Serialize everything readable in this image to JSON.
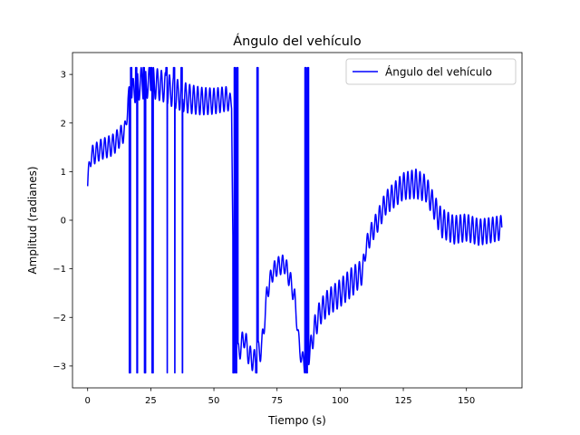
{
  "chart_data": {
    "type": "line",
    "title": "Ángulo del vehículo",
    "xlabel": "Tiempo (s)",
    "ylabel": "Amplitud (radianes)",
    "xlim": [
      -6,
      172
    ],
    "ylim": [
      -3.45,
      3.45
    ],
    "xticks": [
      0,
      25,
      50,
      75,
      100,
      125,
      150
    ],
    "yticks": [
      -3,
      -2,
      -1,
      0,
      1,
      2,
      3
    ],
    "grid": false,
    "legend": "upper-right",
    "colors": {
      "line": "#0000ff",
      "axes": "#000000",
      "background": "#ffffff"
    },
    "series": [
      {
        "name": "Ángulo del vehículo",
        "baseline": [
          [
            0,
            0.7
          ],
          [
            1,
            1.3
          ],
          [
            5,
            1.45
          ],
          [
            10,
            1.55
          ],
          [
            15,
            1.85
          ],
          [
            16,
            2.5
          ],
          [
            20,
            2.8
          ],
          [
            25,
            2.85
          ],
          [
            30,
            2.75
          ],
          [
            35,
            2.6
          ],
          [
            40,
            2.5
          ],
          [
            45,
            2.45
          ],
          [
            50,
            2.45
          ],
          [
            55,
            2.5
          ],
          [
            57,
            2.4
          ],
          [
            58,
            -2.9
          ],
          [
            60,
            -2.7
          ],
          [
            62,
            -2.4
          ],
          [
            64,
            -2.8
          ],
          [
            66,
            -2.9
          ],
          [
            69,
            -2.6
          ],
          [
            70,
            -2.1
          ],
          [
            71,
            -1.5
          ],
          [
            73,
            -1.1
          ],
          [
            75,
            -0.95
          ],
          [
            78,
            -0.9
          ],
          [
            80,
            -1.2
          ],
          [
            82,
            -1.6
          ],
          [
            84,
            -2.7
          ],
          [
            86,
            -3.0
          ],
          [
            88,
            -2.7
          ],
          [
            90,
            -2.2
          ],
          [
            92,
            -1.9
          ],
          [
            95,
            -1.7
          ],
          [
            100,
            -1.5
          ],
          [
            105,
            -1.25
          ],
          [
            109,
            -1.05
          ],
          [
            110,
            -0.6
          ],
          [
            112,
            -0.3
          ],
          [
            115,
            0.0
          ],
          [
            118,
            0.35
          ],
          [
            120,
            0.45
          ],
          [
            125,
            0.7
          ],
          [
            130,
            0.75
          ],
          [
            134,
            0.65
          ],
          [
            137,
            0.3
          ],
          [
            140,
            -0.05
          ],
          [
            145,
            -0.2
          ],
          [
            150,
            -0.15
          ],
          [
            155,
            -0.25
          ],
          [
            160,
            -0.2
          ],
          [
            164,
            -0.15
          ]
        ],
        "oscillation": [
          [
            0,
            0.2
          ],
          [
            10,
            0.22
          ],
          [
            16,
            0.2
          ],
          [
            20,
            0.33
          ],
          [
            40,
            0.3
          ],
          [
            55,
            0.25
          ],
          [
            57,
            0.15
          ],
          [
            58,
            0.2
          ],
          [
            69,
            0.25
          ],
          [
            70,
            0.18
          ],
          [
            80,
            0.2
          ],
          [
            84,
            0.15
          ],
          [
            90,
            0.25
          ],
          [
            105,
            0.3
          ],
          [
            109,
            0.25
          ],
          [
            110,
            0.2
          ],
          [
            120,
            0.25
          ],
          [
            130,
            0.3
          ],
          [
            137,
            0.25
          ],
          [
            140,
            0.3
          ],
          [
            164,
            0.25
          ]
        ],
        "wraps": [
          [
            16.5,
            17.5
          ],
          [
            19.0,
            19.8
          ],
          [
            22.0,
            23.0
          ],
          [
            25.0,
            26.0
          ],
          [
            31.0,
            31.6
          ],
          [
            34.0,
            34.6
          ],
          [
            37.0,
            37.6
          ],
          [
            57.5,
            59.5
          ],
          [
            66.5,
            67.5
          ],
          [
            86.0,
            87.5
          ]
        ]
      }
    ]
  }
}
